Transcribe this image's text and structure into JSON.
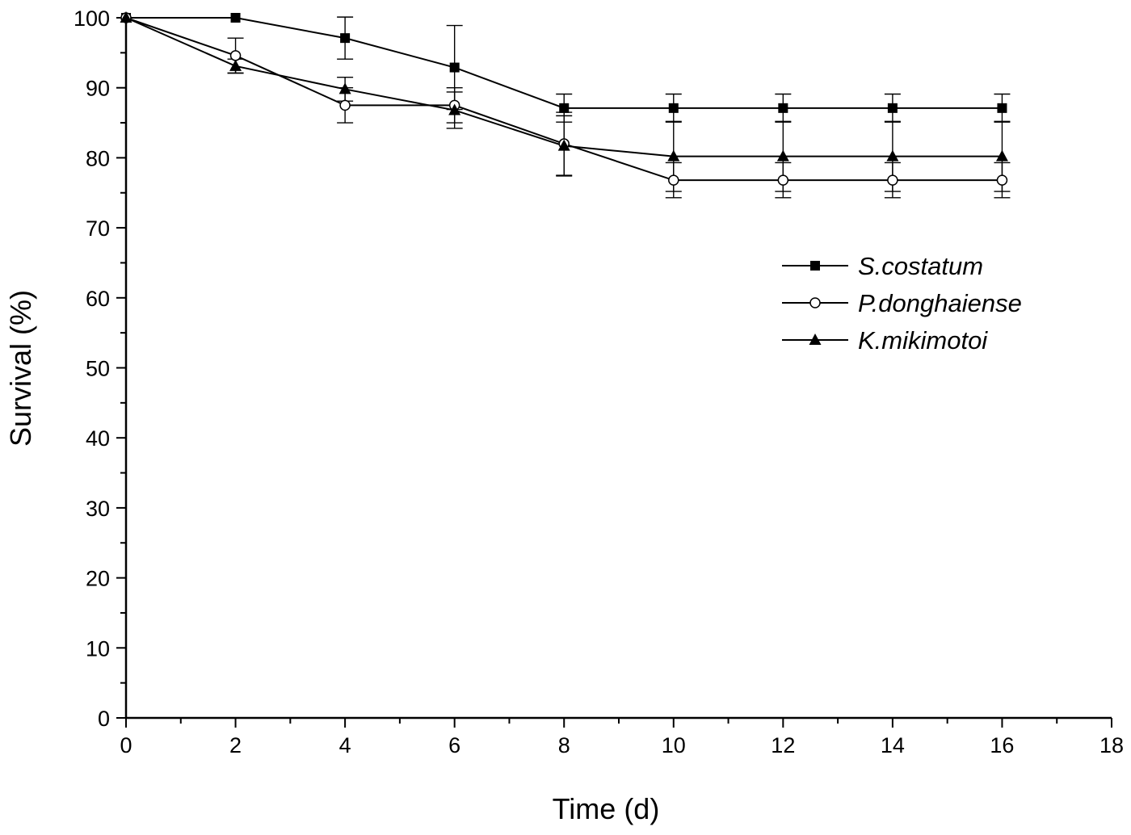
{
  "chart_data": {
    "type": "line",
    "title": "",
    "xlabel": "Time (d)",
    "ylabel": "Survival (%)",
    "xlim": [
      0,
      18
    ],
    "ylim": [
      0,
      100
    ],
    "xticks": [
      0,
      2,
      4,
      6,
      8,
      10,
      12,
      14,
      16,
      18
    ],
    "yticks": [
      0,
      10,
      20,
      30,
      40,
      50,
      60,
      70,
      80,
      90,
      100
    ],
    "grid": false,
    "legend_position": "right",
    "x": [
      0,
      2,
      4,
      6,
      8,
      10,
      12,
      14,
      16
    ],
    "series": [
      {
        "name": "S.costatum",
        "marker": "filled-square",
        "values": [
          100,
          100,
          97.1,
          92.9,
          87.1,
          87.1,
          87.1,
          87.1,
          87.1
        ],
        "errors": [
          0,
          0,
          3.0,
          6.0,
          2.0,
          2.0,
          2.0,
          2.0,
          2.0
        ]
      },
      {
        "name": "P.donghaiense",
        "marker": "open-circle",
        "values": [
          100,
          94.6,
          87.5,
          87.5,
          82.0,
          76.8,
          76.8,
          76.8,
          76.8
        ],
        "errors": [
          0,
          2.5,
          2.5,
          2.5,
          4.5,
          2.5,
          2.5,
          2.5,
          2.5
        ]
      },
      {
        "name": "K.mikimotoi",
        "marker": "filled-triangle",
        "values": [
          100,
          93.1,
          89.8,
          86.8,
          81.7,
          80.2,
          80.2,
          80.2,
          80.2
        ],
        "errors": [
          0,
          1.0,
          1.7,
          2.6,
          4.3,
          5.0,
          5.0,
          5.0,
          5.0
        ]
      }
    ]
  }
}
